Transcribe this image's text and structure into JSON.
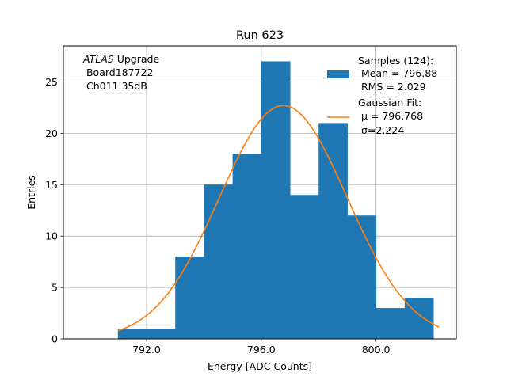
{
  "chart_data": {
    "type": "bar",
    "title": "Run 623",
    "xlabel": "Energy [ADC Counts]",
    "ylabel": "Entries",
    "xlim": [
      789.1,
      802.8
    ],
    "ylim": [
      0,
      28.5
    ],
    "xticks": [
      792.0,
      796.0,
      800.0
    ],
    "xtick_labels": [
      "792.0",
      "796.0",
      "800.0"
    ],
    "yticks": [
      0,
      5,
      10,
      15,
      20,
      25
    ],
    "ytick_labels": [
      "0",
      "5",
      "10",
      "15",
      "20",
      "25"
    ],
    "grid": true,
    "bin_edges": [
      791.0,
      792.0,
      793.0,
      794.0,
      795.0,
      796.0,
      797.0,
      798.0,
      799.0,
      800.0,
      801.0,
      802.0
    ],
    "values": [
      1,
      1,
      8,
      15,
      18,
      27,
      14,
      21,
      12,
      3,
      4
    ],
    "bar_color": "#1f77b4",
    "fit": {
      "type": "gaussian",
      "mu": 796.768,
      "sigma": 2.224,
      "amplitude": 22.7,
      "x_range": [
        791.0,
        802.2
      ],
      "color": "#ff7f0e"
    },
    "annotation": {
      "line1_italic": "ATLAS",
      "line1_rest": " Upgrade",
      "line2": " Board187722",
      "line3": " Ch011 35dB"
    },
    "legend": {
      "placement": "top-right",
      "samples_label": "Samples (124):",
      "samples_mean": " Mean = 796.88",
      "samples_rms": " RMS = 2.029",
      "fit_label": "Gaussian Fit:",
      "fit_mu": " μ = 796.768",
      "fit_sigma": " σ=2.224"
    }
  }
}
